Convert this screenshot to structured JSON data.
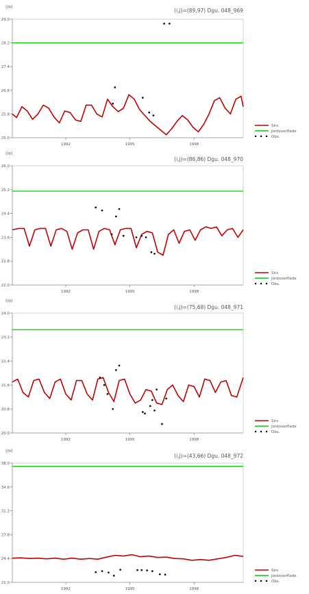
{
  "chart_data": [
    {
      "type": "line",
      "title": "(i,j)=(89,97) Dgu. 048_969",
      "ylabel": "(m)",
      "ylim": [
        25.0,
        29.0
      ],
      "yticks": [
        "25.0",
        "25.8",
        "26.6",
        "27.4",
        "28.2",
        "29.0"
      ],
      "xticks": [
        "1992",
        "1995",
        "1998"
      ],
      "xlim": [
        1989.5,
        2000.3
      ],
      "legend": [
        "Sirs",
        "Jordoverflade",
        "Obs."
      ],
      "legend_position": "bottom-right",
      "series": [
        {
          "name": "Sirs",
          "color": "#c00000",
          "x": [
            1989.5,
            1989.7,
            1989.95,
            1990.2,
            1990.45,
            1990.7,
            1990.95,
            1991.2,
            1991.45,
            1991.7,
            1991.95,
            1992.2,
            1992.45,
            1992.7,
            1992.95,
            1993.2,
            1993.45,
            1993.7,
            1993.95,
            1994.2,
            1994.45,
            1994.7,
            1994.95,
            1995.2,
            1995.45,
            1995.7,
            1995.95,
            1996.2,
            1996.45,
            1996.7,
            1996.95,
            1997.2,
            1997.45,
            1997.7,
            1997.95,
            1998.2,
            1998.45,
            1998.7,
            1998.95,
            1999.2,
            1999.45,
            1999.7,
            1999.95,
            2000.2,
            2000.3
          ],
          "y": [
            25.8,
            25.68,
            26.05,
            25.9,
            25.62,
            25.8,
            26.1,
            26.0,
            25.7,
            25.5,
            25.9,
            25.85,
            25.6,
            25.55,
            26.1,
            26.1,
            25.8,
            25.7,
            26.3,
            26.05,
            25.88,
            26.0,
            26.45,
            26.3,
            25.95,
            25.75,
            25.55,
            25.4,
            25.25,
            25.1,
            25.3,
            25.55,
            25.75,
            25.6,
            25.35,
            25.2,
            25.45,
            25.8,
            26.25,
            26.35,
            26.0,
            25.8,
            26.3,
            26.4,
            26.05
          ]
        },
        {
          "name": "Jordoverflade",
          "color": "#00cc00",
          "x": [
            1989.5,
            2000.3
          ],
          "y": [
            28.2,
            28.2
          ]
        },
        {
          "name": "Obs.",
          "color": "#000000",
          "x": [
            1994.2,
            1994.3,
            1995.6,
            1995.9,
            1996.1,
            1996.6,
            1996.85
          ],
          "y": [
            26.15,
            26.7,
            26.35,
            25.85,
            25.75,
            28.85,
            28.85
          ]
        }
      ]
    },
    {
      "type": "line",
      "title": "(i,j)=(86,86) Dgu. 048_970",
      "ylabel": "(m)",
      "ylim": [
        22.0,
        26.0
      ],
      "yticks": [
        "22.0",
        "22.8",
        "23.6",
        "24.4",
        "25.2",
        "26.0"
      ],
      "xticks": [
        "1992",
        "1995",
        "1998"
      ],
      "xlim": [
        1989.5,
        2000.3
      ],
      "legend": [
        "Sirs",
        "Jordoverflade",
        "Obs."
      ],
      "legend_position": "bottom-right",
      "series": [
        {
          "name": "Sirs",
          "color": "#c00000",
          "x": [
            1989.5,
            1989.8,
            1990.05,
            1990.3,
            1990.55,
            1990.8,
            1991.05,
            1991.3,
            1991.55,
            1991.8,
            1992.05,
            1992.3,
            1992.55,
            1992.8,
            1993.05,
            1993.3,
            1993.55,
            1993.8,
            1994.05,
            1994.3,
            1994.55,
            1994.8,
            1995.05,
            1995.3,
            1995.55,
            1995.8,
            1996.05,
            1996.3,
            1996.55,
            1996.8,
            1997.05,
            1997.3,
            1997.55,
            1997.8,
            1998.05,
            1998.3,
            1998.55,
            1998.8,
            1999.05,
            1999.3,
            1999.55,
            1999.8,
            2000.05,
            2000.3
          ],
          "y": [
            23.85,
            23.9,
            23.9,
            23.3,
            23.85,
            23.9,
            23.9,
            23.3,
            23.85,
            23.9,
            23.8,
            23.2,
            23.75,
            23.85,
            23.85,
            23.2,
            23.8,
            23.9,
            23.85,
            23.35,
            23.85,
            23.9,
            23.9,
            23.25,
            23.7,
            23.8,
            23.75,
            23.1,
            23.0,
            23.7,
            23.85,
            23.4,
            23.8,
            23.85,
            23.5,
            23.85,
            23.95,
            23.9,
            23.95,
            23.65,
            23.85,
            23.9,
            23.6,
            23.85
          ]
        },
        {
          "name": "Jordoverflade",
          "color": "#00cc00",
          "x": [
            1989.5,
            2000.3
          ],
          "y": [
            25.15,
            25.15
          ]
        },
        {
          "name": "Obs.",
          "color": "#000000",
          "x": [
            1993.4,
            1993.7,
            1994.15,
            1994.35,
            1994.5,
            1994.7,
            1995.3,
            1995.55,
            1995.75,
            1996.0,
            1996.15
          ],
          "y": [
            24.6,
            24.5,
            23.7,
            24.3,
            24.55,
            23.65,
            23.6,
            23.65,
            23.6,
            23.1,
            23.05
          ]
        }
      ]
    },
    {
      "type": "line",
      "title": "(i,j)=(75,68) Dgu. 048_971",
      "ylabel": "(m)",
      "ylim": [
        20.0,
        24.0
      ],
      "yticks": [
        "20.0",
        "20.8",
        "21.6",
        "22.4",
        "23.2",
        "24.0"
      ],
      "xticks": [
        "1992",
        "1995",
        "1998"
      ],
      "xlim": [
        1989.5,
        2000.3
      ],
      "legend": [
        "Sirs",
        "Jordoverflade",
        "Obs."
      ],
      "legend_position": "bottom-right",
      "series": [
        {
          "name": "Sirs",
          "color": "#c00000",
          "x": [
            1989.5,
            1989.75,
            1990.0,
            1990.25,
            1990.5,
            1990.75,
            1991.0,
            1991.25,
            1991.5,
            1991.75,
            1992.0,
            1992.25,
            1992.5,
            1992.75,
            1993.0,
            1993.25,
            1993.5,
            1993.75,
            1994.0,
            1994.25,
            1994.5,
            1994.75,
            1995.0,
            1995.25,
            1995.5,
            1995.75,
            1996.0,
            1996.25,
            1996.5,
            1996.75,
            1997.0,
            1997.25,
            1997.5,
            1997.75,
            1998.0,
            1998.25,
            1998.5,
            1998.75,
            1999.0,
            1999.25,
            1999.5,
            1999.75,
            2000.0,
            2000.3
          ],
          "y": [
            21.7,
            21.8,
            21.35,
            21.2,
            21.75,
            21.8,
            21.35,
            21.15,
            21.7,
            21.8,
            21.3,
            21.1,
            21.75,
            21.75,
            21.3,
            21.1,
            21.8,
            21.85,
            21.35,
            21.05,
            21.75,
            21.8,
            21.3,
            21.0,
            21.1,
            21.45,
            21.4,
            21.0,
            20.95,
            21.45,
            21.6,
            21.25,
            21.05,
            21.6,
            21.55,
            21.2,
            21.8,
            21.75,
            21.35,
            21.7,
            21.75,
            21.25,
            21.2,
            21.85
          ]
        },
        {
          "name": "Jordoverflade",
          "color": "#00cc00",
          "x": [
            1989.5,
            2000.3
          ],
          "y": [
            23.45,
            23.45
          ]
        },
        {
          "name": "Obs.",
          "color": "#000000",
          "x": [
            1993.6,
            1993.8,
            1993.95,
            1994.2,
            1994.35,
            1994.5,
            1995.6,
            1995.7,
            1995.95,
            1996.05,
            1996.15,
            1996.25,
            1996.5,
            1996.7
          ],
          "y": [
            21.85,
            21.6,
            21.3,
            20.8,
            22.1,
            22.25,
            20.7,
            20.65,
            20.9,
            21.1,
            20.75,
            21.45,
            20.3,
            21.15
          ]
        }
      ]
    },
    {
      "type": "line",
      "title": "(i,j)=(43,66) Dgu. 048_972",
      "ylabel": "(m)",
      "ylim": [
        21.0,
        38.0
      ],
      "yticks": [
        "21.0",
        "24.4",
        "27.8",
        "31.2",
        "34.6",
        "38.0"
      ],
      "xticks": [
        "1992",
        "1995",
        "1998"
      ],
      "xlim": [
        1989.5,
        2000.3
      ],
      "legend": [
        "Sirs",
        "Jordoverflade",
        "Obs."
      ],
      "legend_position": "bottom-right",
      "series": [
        {
          "name": "Sirs",
          "color": "#c00000",
          "x": [
            1989.5,
            1989.9,
            1990.3,
            1990.7,
            1991.1,
            1991.5,
            1991.9,
            1992.3,
            1992.7,
            1993.1,
            1993.5,
            1993.9,
            1994.3,
            1994.7,
            1995.1,
            1995.5,
            1995.9,
            1996.3,
            1996.7,
            1997.1,
            1997.5,
            1997.9,
            1998.3,
            1998.7,
            1999.1,
            1999.5,
            1999.9,
            2000.3
          ],
          "y": [
            24.45,
            24.5,
            24.4,
            24.45,
            24.35,
            24.45,
            24.3,
            24.45,
            24.3,
            24.4,
            24.3,
            24.6,
            24.85,
            24.75,
            24.95,
            24.65,
            24.75,
            24.55,
            24.6,
            24.4,
            24.35,
            24.15,
            24.25,
            24.15,
            24.35,
            24.55,
            24.85,
            24.7
          ]
        },
        {
          "name": "Jordoverflade",
          "color": "#00cc00",
          "x": [
            1989.5,
            2000.3
          ],
          "y": [
            37.55,
            37.55
          ]
        },
        {
          "name": "Obs.",
          "color": "#000000",
          "x": [
            1993.4,
            1993.7,
            1994.0,
            1994.25,
            1994.55,
            1995.35,
            1995.55,
            1995.8,
            1996.05,
            1996.4,
            1996.65
          ],
          "y": [
            22.45,
            22.6,
            22.4,
            21.95,
            22.8,
            22.75,
            22.75,
            22.7,
            22.6,
            22.15,
            22.1
          ]
        }
      ]
    }
  ]
}
